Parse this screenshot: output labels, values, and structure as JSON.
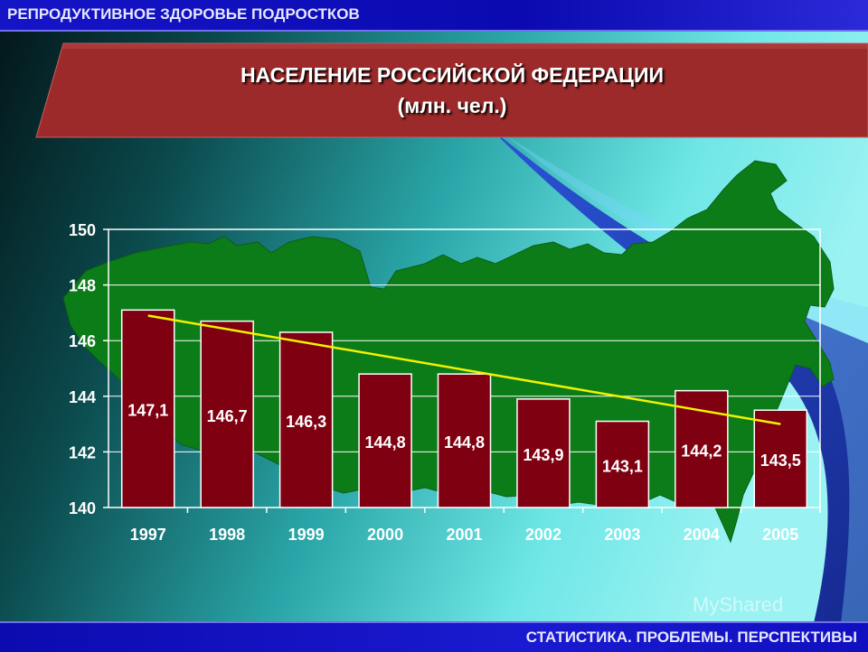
{
  "header": {
    "section_title": "РЕПРОДУКТИВНОЕ ЗДОРОВЬЕ ПОДРОСТКОВ"
  },
  "footer": {
    "tagline": "СТАТИСТИКА. ПРОБЛЕМЫ. ПЕРСПЕКТИВЫ"
  },
  "watermark": "MyShared",
  "colors": {
    "bar_fill": "#7f0010",
    "bar_border": "#ffffff",
    "trend": "#f2f200",
    "map": "#0c7c19",
    "banner": "#9c2a2a",
    "bar_label": "#ffffff"
  },
  "icons": {
    "map": "russia-map-silhouette"
  },
  "chart_data": {
    "type": "bar",
    "title": "НАСЕЛЕНИЕ РОССИЙСКОЙ ФЕДЕРАЦИИ",
    "subtitle": "(млн. чел.)",
    "categories": [
      "1997",
      "1998",
      "1999",
      "2000",
      "2001",
      "2002",
      "2003",
      "2004",
      "2005"
    ],
    "values": [
      147.1,
      146.7,
      146.3,
      144.8,
      144.8,
      143.9,
      143.1,
      144.2,
      143.5
    ],
    "value_labels": [
      "147,1",
      "146,7",
      "146,3",
      "144,8",
      "144,8",
      "143,9",
      "143,1",
      "144,2",
      "143,5"
    ],
    "ylim": [
      140,
      150
    ],
    "yticks": [
      140,
      142,
      144,
      146,
      148,
      150
    ],
    "grid": true,
    "trendline": {
      "type": "linear",
      "from": 146.9,
      "to": 143.0
    }
  }
}
